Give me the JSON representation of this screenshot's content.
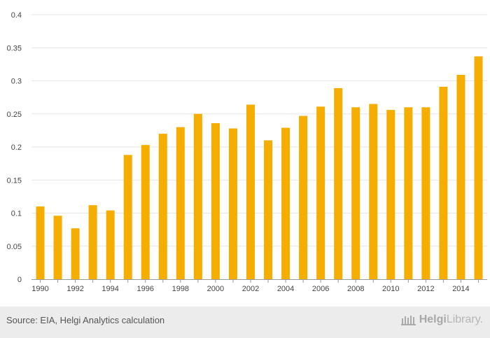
{
  "chart_data": {
    "type": "bar",
    "title": "",
    "xlabel": "",
    "ylabel": "",
    "categories": [
      "1990",
      "1991",
      "1992",
      "1993",
      "1994",
      "1995",
      "1996",
      "1997",
      "1998",
      "1999",
      "2000",
      "2001",
      "2002",
      "2003",
      "2004",
      "2005",
      "2006",
      "2007",
      "2008",
      "2009",
      "2010",
      "2011",
      "2012",
      "2013",
      "2014",
      "2015"
    ],
    "x_tick_labels": [
      "1990",
      "1992",
      "1994",
      "1996",
      "1998",
      "2000",
      "2002",
      "2004",
      "2006",
      "2008",
      "2010",
      "2012",
      "2014"
    ],
    "values": [
      0.11,
      0.096,
      0.077,
      0.112,
      0.104,
      0.188,
      0.203,
      0.22,
      0.23,
      0.25,
      0.236,
      0.228,
      0.264,
      0.21,
      0.229,
      0.247,
      0.261,
      0.289,
      0.26,
      0.265,
      0.256,
      0.26,
      0.26,
      0.291,
      0.309,
      0.337
    ],
    "ylim": [
      0,
      0.4
    ],
    "y_ticks": [
      "0",
      "0.05",
      "0.1",
      "0.15",
      "0.2",
      "0.25",
      "0.3",
      "0.35",
      "0.4"
    ],
    "grid": true,
    "bar_color": "#f5ad00"
  },
  "footer": {
    "source": "Source: EIA, Helgi Analytics calculation",
    "logo_text_bold": "Helgi",
    "logo_text": "Library."
  }
}
